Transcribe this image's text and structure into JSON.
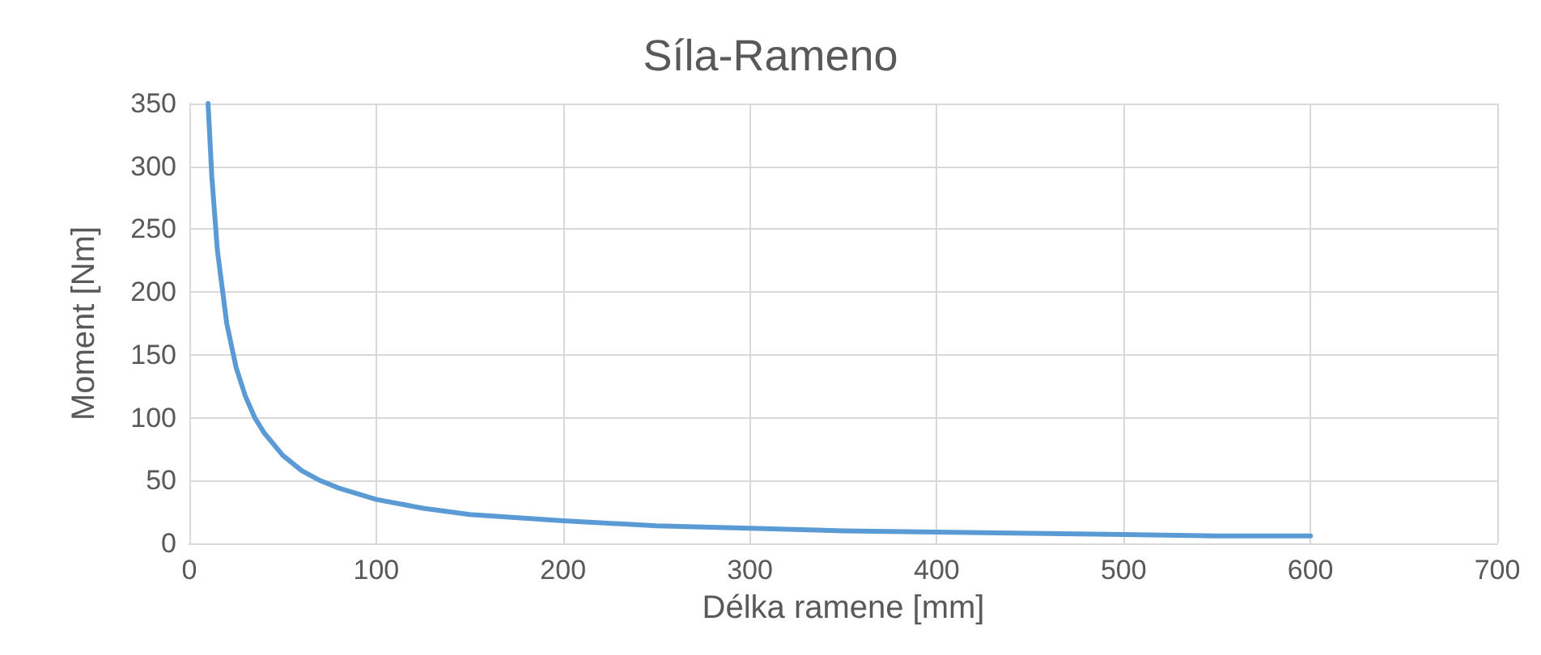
{
  "chart_data": {
    "type": "line",
    "title": "Síla-Rameno",
    "xlabel": "Délka ramene [mm]",
    "ylabel": "Moment [Nm]",
    "x": [
      10,
      12,
      15,
      20,
      25,
      30,
      35,
      40,
      50,
      60,
      70,
      80,
      100,
      125,
      150,
      200,
      250,
      300,
      350,
      400,
      450,
      500,
      550,
      600
    ],
    "series": [
      {
        "color": "#5b9bd5",
        "values": [
          350,
          292,
          233,
          175,
          140,
          117,
          100,
          88,
          70,
          58,
          50,
          44,
          35,
          28,
          23,
          18,
          14,
          12,
          10,
          9,
          8,
          7,
          6,
          6
        ]
      }
    ],
    "xlim": [
      0,
      700
    ],
    "xticks": [
      0,
      100,
      200,
      300,
      400,
      500,
      600,
      700
    ],
    "ylim": [
      0,
      350
    ],
    "yticks": [
      0,
      50,
      100,
      150,
      200,
      250,
      300,
      350
    ],
    "grid": true,
    "marker": "none",
    "line_style": "solid"
  }
}
